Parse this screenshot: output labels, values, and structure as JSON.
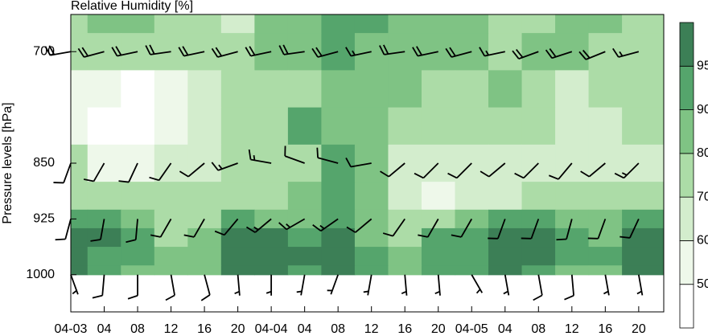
{
  "chart_data": {
    "type": "contour",
    "title": "Relative Humidity [%]",
    "y_label": "Pressure levels [hPa]",
    "xlim": [
      0,
      71
    ],
    "ylim": [
      1050,
      650
    ],
    "y_reversed": true,
    "xticks": [
      {
        "value": 0,
        "label": "04-03"
      },
      {
        "value": 4,
        "label": "04"
      },
      {
        "value": 8,
        "label": "08"
      },
      {
        "value": 12,
        "label": "12"
      },
      {
        "value": 16,
        "label": "16"
      },
      {
        "value": 20,
        "label": "20"
      },
      {
        "value": 24,
        "label": "04-04"
      },
      {
        "value": 28,
        "label": "04"
      },
      {
        "value": 32,
        "label": "08"
      },
      {
        "value": 36,
        "label": "12"
      },
      {
        "value": 40,
        "label": "16"
      },
      {
        "value": 44,
        "label": "20"
      },
      {
        "value": 48,
        "label": "04-05"
      },
      {
        "value": 52,
        "label": "04"
      },
      {
        "value": 56,
        "label": "08"
      },
      {
        "value": 60,
        "label": "12"
      },
      {
        "value": 64,
        "label": "16"
      },
      {
        "value": 68,
        "label": "20"
      }
    ],
    "yticks": [
      700,
      850,
      925,
      1000
    ],
    "levels": [
      50,
      60,
      70,
      80,
      90,
      95
    ],
    "colors": [
      "#ffffff",
      "#eef8ea",
      "#d3edcd",
      "#acdca7",
      "#7fc384",
      "#55a56c",
      "#3c7f56"
    ],
    "times": [
      0,
      4,
      8,
      12,
      16,
      20,
      24,
      28,
      32,
      36,
      40,
      44,
      48,
      52,
      56,
      60,
      64,
      68
    ],
    "pressures": [
      650,
      700,
      750,
      800,
      850,
      900,
      925,
      950,
      975,
      1000
    ],
    "rh": [
      [
        75,
        82,
        80,
        78,
        75,
        65,
        85,
        85,
        92,
        92,
        85,
        85,
        80,
        70,
        72,
        85,
        80,
        75
      ],
      [
        72,
        78,
        78,
        75,
        70,
        72,
        82,
        85,
        90,
        88,
        85,
        82,
        80,
        75,
        80,
        85,
        78,
        75
      ],
      [
        55,
        50,
        45,
        55,
        65,
        72,
        75,
        78,
        82,
        80,
        80,
        78,
        72,
        80,
        75,
        65,
        70,
        70
      ],
      [
        50,
        45,
        40,
        50,
        65,
        70,
        72,
        92,
        85,
        80,
        75,
        72,
        75,
        75,
        70,
        60,
        60,
        70
      ],
      [
        70,
        55,
        55,
        60,
        68,
        72,
        72,
        75,
        90,
        80,
        65,
        60,
        60,
        65,
        65,
        65,
        60,
        65
      ],
      [
        70,
        72,
        70,
        70,
        72,
        72,
        75,
        85,
        92,
        82,
        62,
        55,
        60,
        65,
        70,
        70,
        70,
        70
      ],
      [
        90,
        92,
        80,
        75,
        78,
        92,
        88,
        85,
        93,
        88,
        75,
        70,
        80,
        92,
        90,
        88,
        85,
        90
      ],
      [
        96,
        96,
        90,
        78,
        85,
        95,
        96,
        94,
        96,
        88,
        78,
        90,
        90,
        96,
        95,
        92,
        88,
        96
      ],
      [
        96,
        94,
        90,
        80,
        88,
        96,
        96,
        95,
        95,
        90,
        82,
        92,
        92,
        96,
        95,
        90,
        90,
        96
      ],
      [
        95,
        92,
        88,
        80,
        85,
        95,
        95,
        92,
        95,
        90,
        85,
        90,
        90,
        95,
        93,
        88,
        88,
        95
      ]
    ],
    "wind": {
      "levels": [
        700,
        850,
        925,
        1000
      ],
      "direction": [
        [
          260,
          255,
          258,
          262,
          258,
          255,
          258,
          262,
          255,
          258,
          262,
          258,
          255,
          258,
          250,
          252,
          248,
          255
        ],
        [
          200,
          210,
          205,
          215,
          230,
          250,
          280,
          290,
          285,
          260,
          230,
          225,
          225,
          230,
          225,
          220,
          230,
          225
        ],
        [
          195,
          190,
          185,
          210,
          210,
          220,
          230,
          240,
          235,
          230,
          215,
          210,
          210,
          200,
          200,
          195,
          200,
          205
        ],
        [
          160,
          185,
          180,
          170,
          165,
          175,
          180,
          190,
          200,
          190,
          175,
          175,
          150,
          170,
          170,
          175,
          170,
          170
        ]
      ],
      "speed": [
        [
          20,
          20,
          20,
          20,
          20,
          20,
          20,
          20,
          20,
          15,
          20,
          20,
          20,
          15,
          20,
          20,
          20,
          15
        ],
        [
          10,
          10,
          10,
          10,
          10,
          15,
          15,
          10,
          10,
          10,
          10,
          10,
          10,
          10,
          10,
          10,
          10,
          15
        ],
        [
          10,
          10,
          10,
          10,
          10,
          10,
          15,
          15,
          15,
          10,
          10,
          10,
          10,
          10,
          10,
          10,
          10,
          10
        ],
        [
          5,
          10,
          10,
          10,
          10,
          5,
          5,
          5,
          5,
          5,
          5,
          5,
          5,
          5,
          10,
          10,
          5,
          5
        ]
      ]
    }
  }
}
